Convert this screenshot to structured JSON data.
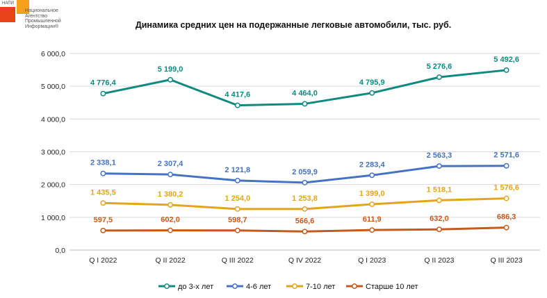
{
  "logo": {
    "abbr": "НАПИ",
    "text": "Национальное\nАгентство\nПромышленной\nИнформации®"
  },
  "chart_data": {
    "type": "line",
    "title": "Динамика средних цен на подержанные легковые автомобили, тыс. руб.",
    "xlabel": "",
    "ylabel": "",
    "categories": [
      "Q I 2022",
      "Q II 2022",
      "Q III 2022",
      "Q IV 2022",
      "Q I 2023",
      "Q II 2023",
      "Q III 2023"
    ],
    "ylim": [
      0,
      6000
    ],
    "yticks": [
      0,
      1000,
      2000,
      3000,
      4000,
      5000,
      6000
    ],
    "ytick_labels": [
      "0,0",
      "1 000,0",
      "2 000,0",
      "3 000,0",
      "4 000,0",
      "5 000,0",
      "6 000,0"
    ],
    "grid": true,
    "legend_position": "bottom",
    "series": [
      {
        "name": "до 3-х лет",
        "color": "#0f8a80",
        "values": [
          4776.4,
          5199.0,
          4417.6,
          4464.0,
          4795.9,
          5276.6,
          5492.6
        ],
        "labels": [
          "4 776,4",
          "5 199,0",
          "4 417,6",
          "4 464,0",
          "4 795,9",
          "5 276,6",
          "5 492,6"
        ]
      },
      {
        "name": "4-6 лет",
        "color": "#4472c4",
        "values": [
          2338.1,
          2307.4,
          2121.8,
          2059.9,
          2283.4,
          2563.3,
          2571.6
        ],
        "labels": [
          "2 338,1",
          "2 307,4",
          "2 121,8",
          "2 059,9",
          "2 283,4",
          "2 563,3",
          "2 571,6"
        ]
      },
      {
        "name": "7-10 лет",
        "color": "#e3a51c",
        "values": [
          1435.5,
          1380.2,
          1254.0,
          1253.8,
          1399.0,
          1518.1,
          1576.6
        ],
        "labels": [
          "1 435,5",
          "1 380,2",
          "1 254,0",
          "1 253,8",
          "1 399,0",
          "1 518,1",
          "1 576,6"
        ]
      },
      {
        "name": "Старше 10 лет",
        "color": "#c55a1e",
        "values": [
          597.5,
          602.0,
          598.7,
          566.6,
          611.9,
          632.0,
          686.3
        ],
        "labels": [
          "597,5",
          "602,0",
          "598,7",
          "566,6",
          "611,9",
          "632,0",
          "686,3"
        ]
      }
    ]
  }
}
